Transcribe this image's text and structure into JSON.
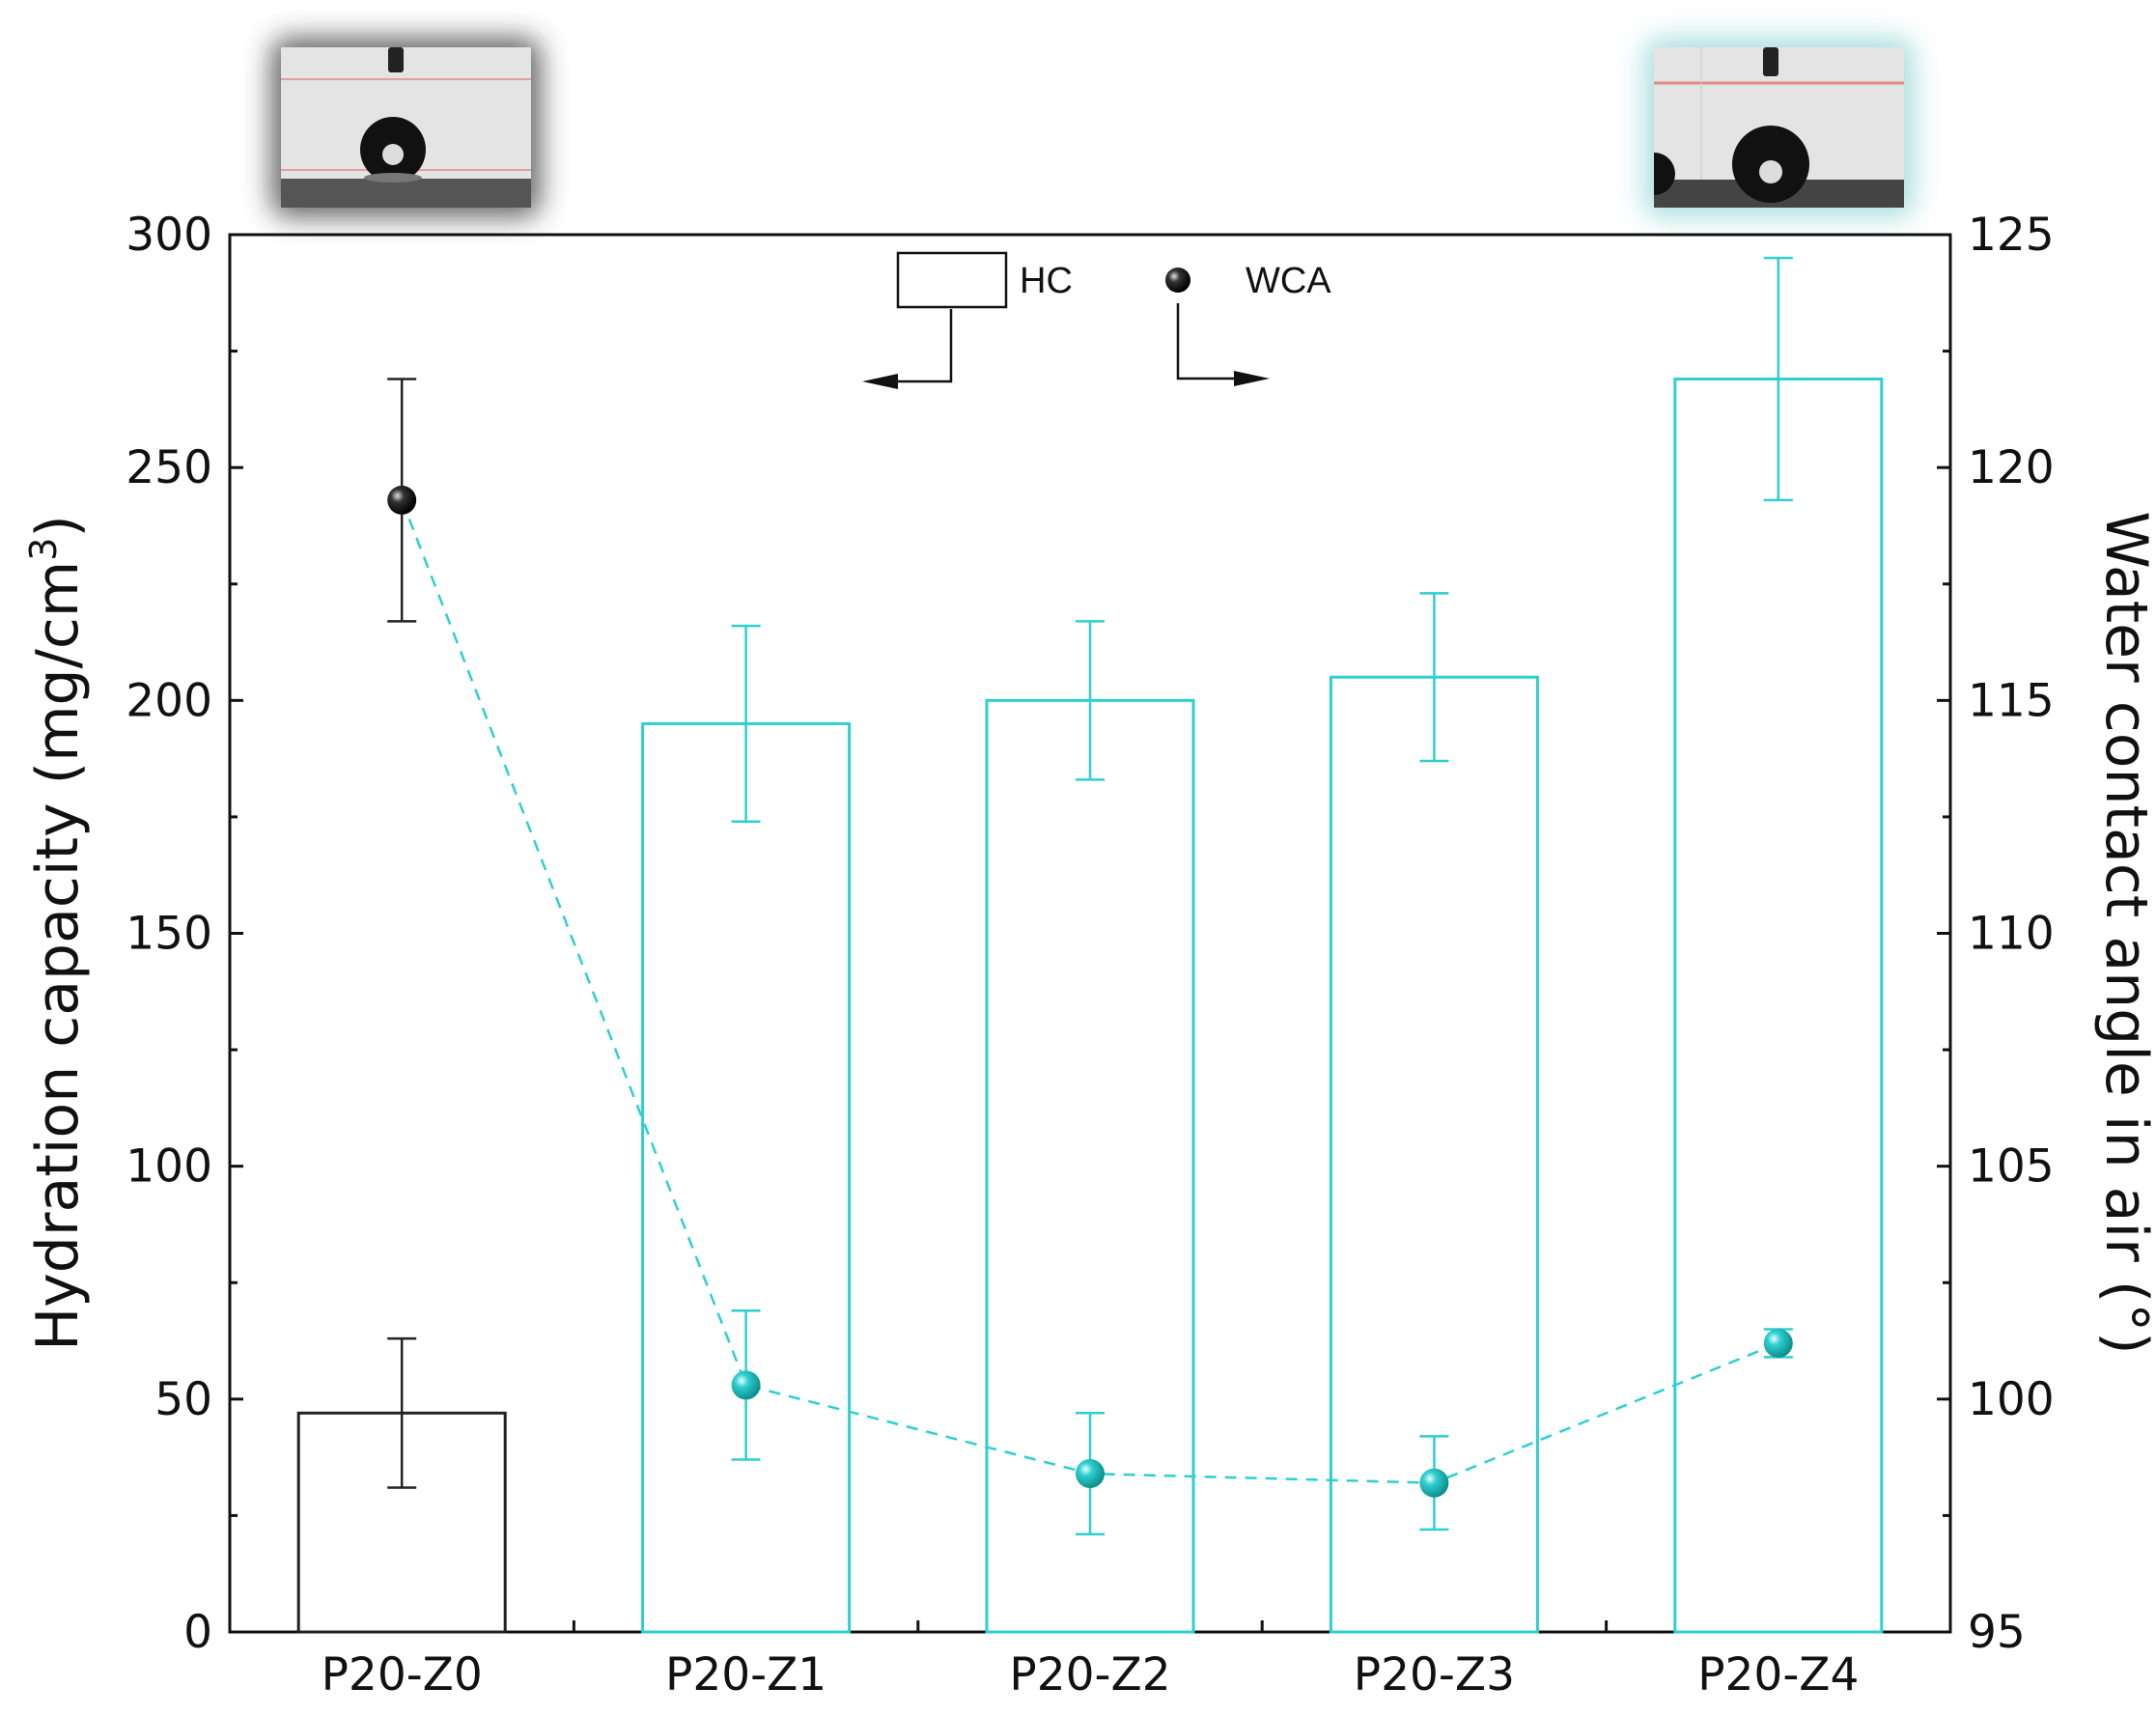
{
  "chart_data": {
    "type": "bar",
    "categories": [
      "P20-Z0",
      "P20-Z1",
      "P20-Z2",
      "P20-Z3",
      "P20-Z4"
    ],
    "series": [
      {
        "name": "HC",
        "axis": "left",
        "kind": "bar",
        "values": [
          47,
          195,
          200,
          205,
          269
        ],
        "errors": [
          16,
          21,
          17,
          18,
          26
        ]
      },
      {
        "name": "WCA",
        "axis": "right",
        "kind": "line-scatter",
        "line_style": "dashed",
        "values": [
          119.3,
          100.3,
          98.4,
          98.2,
          101.2
        ],
        "errors": [
          2.6,
          1.6,
          1.3,
          1.0,
          0.3
        ]
      }
    ],
    "ylabel": "Hydration capacity (mg/cm",
    "ylabel_superscript": "3",
    "ylabel_close": ")",
    "y2label": "Water contact angle in air (°)",
    "xlabel": "",
    "ylim": [
      0,
      300
    ],
    "y2lim": [
      95,
      125
    ],
    "y_ticks": [
      "0",
      "50",
      "100",
      "150",
      "200",
      "250",
      "300"
    ],
    "y2_ticks": [
      "95",
      "100",
      "105",
      "110",
      "115",
      "120",
      "125"
    ],
    "legend": {
      "hc_label": "HC",
      "wca_label": "WCA",
      "placement": "top-center"
    },
    "grid": false,
    "colors": {
      "first_category": "#222222",
      "other_categories": "#2ecfcf",
      "axis": "#111111"
    },
    "insets": [
      {
        "name": "droplet-image-left",
        "position": "top-left",
        "glow": "#333333"
      },
      {
        "name": "droplet-image-right",
        "position": "top-right",
        "glow": "#9fdede"
      }
    ]
  }
}
